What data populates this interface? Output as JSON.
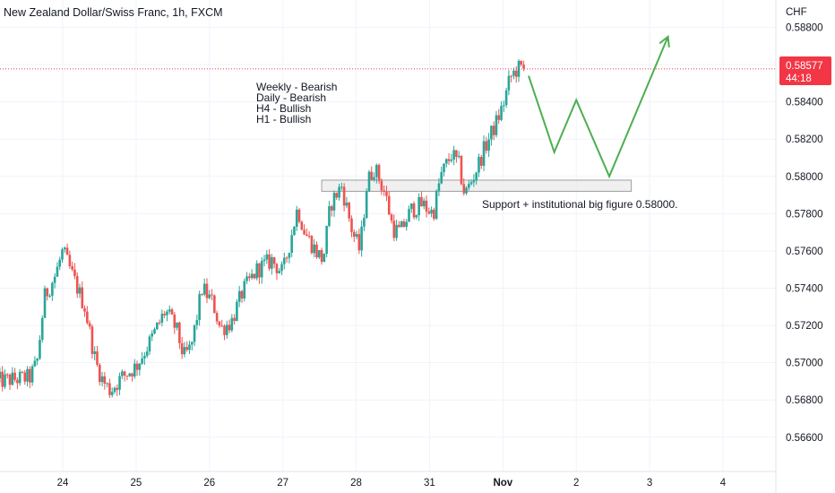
{
  "header": {
    "title": "New Zealand Dollar/Swiss Franc, 1h, FXCM",
    "currency": "CHF"
  },
  "price_tag": {
    "price": "0.58577",
    "countdown": "44:18",
    "value": 0.58577,
    "color": "#f23645"
  },
  "notes": {
    "bias_lines": [
      "Weekly - Bearish",
      "Daily - Bearish",
      "H4 - Bullish",
      "H1 - Bullish"
    ],
    "support_label": "Support + institutional big figure 0.58000."
  },
  "colors": {
    "up": "#26a69a",
    "down": "#ef5350",
    "projection": "#4caf50",
    "grid": "#f0f3fa",
    "zone_fill": "#ebebeb",
    "zone_stroke": "#9e9e9e"
  },
  "chart_data": {
    "type": "candlestick",
    "title": "New Zealand Dollar/Swiss Franc, 1h, FXCM",
    "x_ticks": [
      {
        "label": "24",
        "t": 0.9
      },
      {
        "label": "25",
        "t": 1.9
      },
      {
        "label": "26",
        "t": 2.9
      },
      {
        "label": "27",
        "t": 3.9
      },
      {
        "label": "28",
        "t": 4.9
      },
      {
        "label": "31",
        "t": 5.9
      },
      {
        "label": "Nov",
        "t": 6.9
      },
      {
        "label": "2",
        "t": 7.9
      },
      {
        "label": "3",
        "t": 8.9
      },
      {
        "label": "4",
        "t": 9.9
      }
    ],
    "y_ticks": [
      "0.58800",
      "0.58600",
      "0.58400",
      "0.58200",
      "0.58000",
      "0.57800",
      "0.57600",
      "0.57400",
      "0.57200",
      "0.57000",
      "0.56800",
      "0.56600"
    ],
    "y_range": [
      0.5649,
      0.5895
    ],
    "x_range": [
      0,
      10.6
    ],
    "price_path": [
      [
        0.0,
        0.569
      ],
      [
        0.45,
        0.5692
      ],
      [
        0.55,
        0.57
      ],
      [
        0.65,
        0.5735
      ],
      [
        0.8,
        0.5747
      ],
      [
        0.9,
        0.576
      ],
      [
        1.05,
        0.5745
      ],
      [
        1.2,
        0.573
      ],
      [
        1.35,
        0.57
      ],
      [
        1.45,
        0.569
      ],
      [
        1.55,
        0.5685
      ],
      [
        1.7,
        0.5692
      ],
      [
        1.9,
        0.5698
      ],
      [
        2.1,
        0.5712
      ],
      [
        2.3,
        0.5728
      ],
      [
        2.45,
        0.5718
      ],
      [
        2.55,
        0.5703
      ],
      [
        2.65,
        0.5708
      ],
      [
        2.8,
        0.574
      ],
      [
        2.95,
        0.5732
      ],
      [
        3.05,
        0.5718
      ],
      [
        3.2,
        0.5722
      ],
      [
        3.35,
        0.5738
      ],
      [
        3.55,
        0.575
      ],
      [
        3.75,
        0.5755
      ],
      [
        3.9,
        0.5748
      ],
      [
        4.1,
        0.5783
      ],
      [
        4.2,
        0.577
      ],
      [
        4.35,
        0.576
      ],
      [
        4.45,
        0.5755
      ],
      [
        4.55,
        0.5785
      ],
      [
        4.7,
        0.5795
      ],
      [
        4.85,
        0.577
      ],
      [
        4.95,
        0.576
      ],
      [
        5.05,
        0.5797
      ],
      [
        5.15,
        0.5805
      ],
      [
        5.3,
        0.579
      ],
      [
        5.4,
        0.5772
      ],
      [
        5.5,
        0.577
      ],
      [
        5.65,
        0.5782
      ],
      [
        5.8,
        0.5785
      ],
      [
        5.95,
        0.578
      ],
      [
        6.05,
        0.58
      ],
      [
        6.2,
        0.5812
      ],
      [
        6.3,
        0.5806
      ],
      [
        6.38,
        0.579
      ],
      [
        6.5,
        0.58
      ],
      [
        6.65,
        0.5815
      ],
      [
        6.8,
        0.5828
      ],
      [
        6.9,
        0.5838
      ],
      [
        7.0,
        0.5853
      ],
      [
        7.1,
        0.5858
      ],
      [
        7.2,
        0.5857
      ]
    ],
    "projection": {
      "points": [
        {
          "t": 7.25,
          "price": 0.5854
        },
        {
          "t": 7.6,
          "price": 0.5813
        },
        {
          "t": 7.9,
          "price": 0.5841
        },
        {
          "t": 8.35,
          "price": 0.58
        },
        {
          "t": 9.15,
          "price": 0.5875
        }
      ],
      "arrow": "end"
    },
    "support_zone": {
      "t_start": 4.43,
      "t_end": 8.65,
      "price_low": 0.5792,
      "price_high": 0.5798
    },
    "current_price": 0.58577,
    "grid": true
  }
}
